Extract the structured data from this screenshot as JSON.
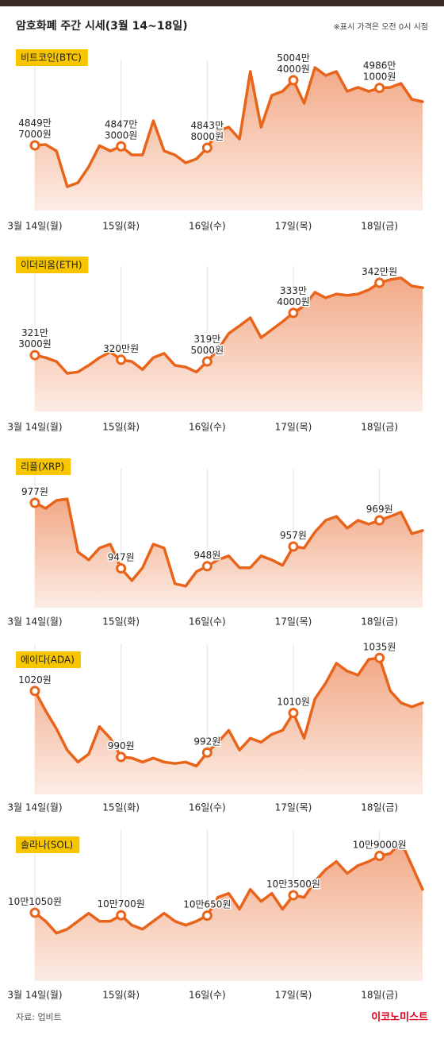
{
  "header": {
    "title": "암호화폐 주간 시세(3월 14~18일)",
    "note": "※표시 가격은 오전 0시 시점"
  },
  "chart_data": [
    {
      "type": "line",
      "title": "비트코인(BTC)",
      "color": "#e8641b",
      "x": [
        0,
        0.125,
        0.25,
        0.375,
        0.5,
        0.625,
        0.75,
        0.875,
        1,
        1.125,
        1.25,
        1.375,
        1.5,
        1.625,
        1.75,
        1.875,
        2,
        2.125,
        2.25,
        2.375,
        2.5,
        2.625,
        2.75,
        2.875,
        3,
        3.125,
        3.25,
        3.375,
        3.5,
        3.625,
        3.75,
        3.875,
        4,
        4.125,
        4.25,
        4.375,
        4.5
      ],
      "values": [
        48497000,
        48516000,
        48365000,
        47516000,
        47610000,
        47988000,
        48490000,
        48365000,
        48473000,
        48271000,
        48271000,
        49082000,
        48365000,
        48271000,
        48082000,
        48176000,
        48438000,
        48837000,
        48931000,
        48648000,
        50252000,
        48931000,
        49686000,
        49780000,
        50044000,
        49497000,
        50346000,
        50157000,
        50252000,
        49780000,
        49874000,
        49780000,
        49861000,
        49874000,
        49969000,
        49592000,
        49535000
      ],
      "value_labels": [
        [
          "4849만",
          "7000원"
        ],
        null,
        null,
        null,
        null,
        null,
        null,
        null,
        [
          "4847만",
          "3000원"
        ],
        null,
        null,
        null,
        null,
        null,
        null,
        null,
        [
          "4843만",
          "8000원"
        ],
        null,
        null,
        null,
        null,
        null,
        null,
        null,
        [
          "5004만",
          "4000원"
        ],
        null,
        null,
        null,
        null,
        null,
        null,
        null,
        [
          "4986만",
          "1000원"
        ],
        null,
        null,
        null,
        null
      ],
      "xlim": [
        0,
        4.5
      ],
      "ylim": [
        46950000,
        50346000
      ],
      "xticks": [
        {
          "value": 0,
          "label": "3월 14일(월)"
        },
        {
          "value": 1,
          "label": "15일(화)"
        },
        {
          "value": 2,
          "label": "16일(수)"
        },
        {
          "value": 3,
          "label": "17일(목)"
        },
        {
          "value": 4,
          "label": "18일(금)"
        }
      ]
    },
    {
      "type": "line",
      "title": "이더리움(ETH)",
      "color": "#e8641b",
      "x": [
        0,
        0.125,
        0.25,
        0.375,
        0.5,
        0.625,
        0.75,
        0.875,
        1,
        1.125,
        1.25,
        1.375,
        1.5,
        1.625,
        1.75,
        1.875,
        2,
        2.125,
        2.25,
        2.375,
        2.5,
        2.625,
        2.75,
        2.875,
        3,
        3.125,
        3.25,
        3.375,
        3.5,
        3.625,
        3.75,
        3.875,
        4,
        4.125,
        4.25,
        4.375,
        4.5
      ],
      "values": [
        3213000,
        3206000,
        3195000,
        3161000,
        3165000,
        3184000,
        3206000,
        3222000,
        3200000,
        3195000,
        3172000,
        3206000,
        3218000,
        3184000,
        3179000,
        3165000,
        3195000,
        3229000,
        3275000,
        3297000,
        3320000,
        3263000,
        3286000,
        3309000,
        3334000,
        3354000,
        3393000,
        3377000,
        3388000,
        3384000,
        3388000,
        3400000,
        3420000,
        3429000,
        3434000,
        3411000,
        3406000
      ],
      "value_labels": [
        [
          "321만",
          "3000원"
        ],
        null,
        null,
        null,
        null,
        null,
        null,
        null,
        [
          "320만원"
        ],
        null,
        null,
        null,
        null,
        null,
        null,
        null,
        [
          "319만",
          "5000원"
        ],
        null,
        null,
        null,
        null,
        null,
        null,
        null,
        [
          "333만",
          "4000원"
        ],
        null,
        null,
        null,
        null,
        null,
        null,
        null,
        [
          "342만원"
        ],
        null,
        null,
        null,
        null
      ],
      "xlim": [
        0,
        4.5
      ],
      "ylim": [
        3052000,
        3445000
      ],
      "xticks": [
        {
          "value": 0,
          "label": "3월 14일(월)"
        },
        {
          "value": 1,
          "label": "15일(화)"
        },
        {
          "value": 2,
          "label": "16일(수)"
        },
        {
          "value": 3,
          "label": "17일(목)"
        },
        {
          "value": 4,
          "label": "18일(금)"
        }
      ]
    },
    {
      "type": "line",
      "title": "리플(XRP)",
      "color": "#e8641b",
      "x": [
        0,
        0.125,
        0.25,
        0.375,
        0.5,
        0.625,
        0.75,
        0.875,
        1,
        1.125,
        1.25,
        1.375,
        1.5,
        1.625,
        1.75,
        1.875,
        2,
        2.125,
        2.25,
        2.375,
        2.5,
        2.625,
        2.75,
        2.875,
        3,
        3.125,
        3.25,
        3.375,
        3.5,
        3.625,
        3.75,
        3.875,
        4,
        4.125,
        4.25,
        4.375,
        4.5
      ],
      "values": [
        977,
        974.5,
        978.1,
        978.8,
        954.5,
        950.9,
        956.3,
        958.1,
        947,
        941.4,
        947.3,
        958.1,
        956.3,
        940,
        938.9,
        945.5,
        948,
        950.9,
        952.7,
        947.3,
        947.3,
        952.7,
        950.9,
        948.4,
        957,
        956.3,
        963.6,
        969,
        970.8,
        965.4,
        969,
        967.2,
        969,
        970.8,
        972.7,
        962.9,
        964.3
      ],
      "value_labels": [
        [
          "977원"
        ],
        null,
        null,
        null,
        null,
        null,
        null,
        null,
        [
          "947원"
        ],
        null,
        null,
        null,
        null,
        null,
        null,
        null,
        [
          "948원"
        ],
        null,
        null,
        null,
        null,
        null,
        null,
        null,
        [
          "957원"
        ],
        null,
        null,
        null,
        null,
        null,
        null,
        null,
        [
          "969원"
        ],
        null,
        null,
        null,
        null
      ],
      "xlim": [
        0,
        4.5
      ],
      "ylim": [
        929,
        989
      ],
      "xticks": [
        {
          "value": 0,
          "label": "3월 14일(월)"
        },
        {
          "value": 1,
          "label": "15일(화)"
        },
        {
          "value": 2,
          "label": "16일(수)"
        },
        {
          "value": 3,
          "label": "17일(목)"
        },
        {
          "value": 4,
          "label": "18일(금)"
        }
      ]
    },
    {
      "type": "line",
      "title": "에이다(ADA)",
      "color": "#e8641b",
      "x": [
        0,
        0.125,
        0.25,
        0.375,
        0.5,
        0.625,
        0.75,
        0.875,
        1,
        1.125,
        1.25,
        1.375,
        1.5,
        1.625,
        1.75,
        1.875,
        2,
        2.125,
        2.25,
        2.375,
        2.5,
        2.625,
        2.75,
        2.875,
        3,
        3.125,
        3.25,
        3.375,
        3.5,
        3.625,
        3.75,
        3.875,
        4,
        4.125,
        4.25,
        4.375,
        4.5
      ],
      "values": [
        1020,
        1011,
        1002.8,
        993.1,
        987.7,
        991.3,
        1003.8,
        998.5,
        990,
        989.5,
        987.7,
        989.5,
        987.7,
        987,
        987.7,
        985.9,
        992,
        996.7,
        1002.1,
        993.1,
        998.5,
        996.7,
        1000.3,
        1002.1,
        1010,
        998.5,
        1016.4,
        1023.6,
        1032.6,
        1029,
        1027.2,
        1034.4,
        1035,
        1020,
        1014.6,
        1012.8,
        1014.6
      ],
      "value_labels": [
        [
          "1020원"
        ],
        null,
        null,
        null,
        null,
        null,
        null,
        null,
        [
          "990원"
        ],
        null,
        null,
        null,
        null,
        null,
        null,
        null,
        [
          "992원"
        ],
        null,
        null,
        null,
        null,
        null,
        null,
        null,
        [
          "1010원"
        ],
        null,
        null,
        null,
        null,
        null,
        null,
        null,
        [
          "1035원"
        ],
        null,
        null,
        null,
        null
      ],
      "xlim": [
        0,
        4.5
      ],
      "ylim": [
        973,
        1038
      ],
      "xticks": [
        {
          "value": 0,
          "label": "3월 14일(월)"
        },
        {
          "value": 1,
          "label": "15일(화)"
        },
        {
          "value": 2,
          "label": "16일(수)"
        },
        {
          "value": 3,
          "label": "17일(목)"
        },
        {
          "value": 4,
          "label": "18일(금)"
        }
      ]
    },
    {
      "type": "line",
      "title": "솔라나(SOL)",
      "color": "#e8641b",
      "x": [
        0,
        0.125,
        0.25,
        0.375,
        0.5,
        0.625,
        0.75,
        0.875,
        1,
        1.125,
        1.25,
        1.375,
        1.5,
        1.625,
        1.75,
        1.875,
        2,
        2.125,
        2.25,
        2.375,
        2.5,
        2.625,
        2.75,
        2.875,
        3,
        3.125,
        3.25,
        3.375,
        3.5,
        3.625,
        3.75,
        3.875,
        4,
        4.125,
        4.25,
        4.375,
        4.5
      ],
      "values": [
        101050,
        99870,
        98200,
        98760,
        99870,
        100980,
        99870,
        99870,
        100700,
        99310,
        98760,
        99870,
        100980,
        99870,
        99310,
        99870,
        100650,
        103210,
        103770,
        101540,
        104320,
        102650,
        103770,
        101540,
        103500,
        103210,
        105440,
        107100,
        108220,
        106550,
        107660,
        108220,
        109000,
        109330,
        111000,
        107660,
        104320
      ],
      "value_labels": [
        [
          "10만1050원"
        ],
        null,
        null,
        null,
        null,
        null,
        null,
        null,
        [
          "10만700원"
        ],
        null,
        null,
        null,
        null,
        null,
        null,
        null,
        [
          "10만650원"
        ],
        null,
        null,
        null,
        null,
        null,
        null,
        null,
        [
          "10만3500원"
        ],
        null,
        null,
        null,
        null,
        null,
        null,
        null,
        [
          "10만9000원"
        ],
        null,
        null,
        null,
        null
      ],
      "xlim": [
        0,
        4.5
      ],
      "ylim": [
        91500,
        111500
      ],
      "xticks": [
        {
          "value": 0,
          "label": "3월 14일(월)"
        },
        {
          "value": 1,
          "label": "15일(화)"
        },
        {
          "value": 2,
          "label": "16일(수)"
        },
        {
          "value": 3,
          "label": "17일(목)"
        },
        {
          "value": 4,
          "label": "18일(금)"
        }
      ]
    }
  ],
  "footer": {
    "source": "자료: 업비트",
    "brand": "이코노미스트"
  }
}
